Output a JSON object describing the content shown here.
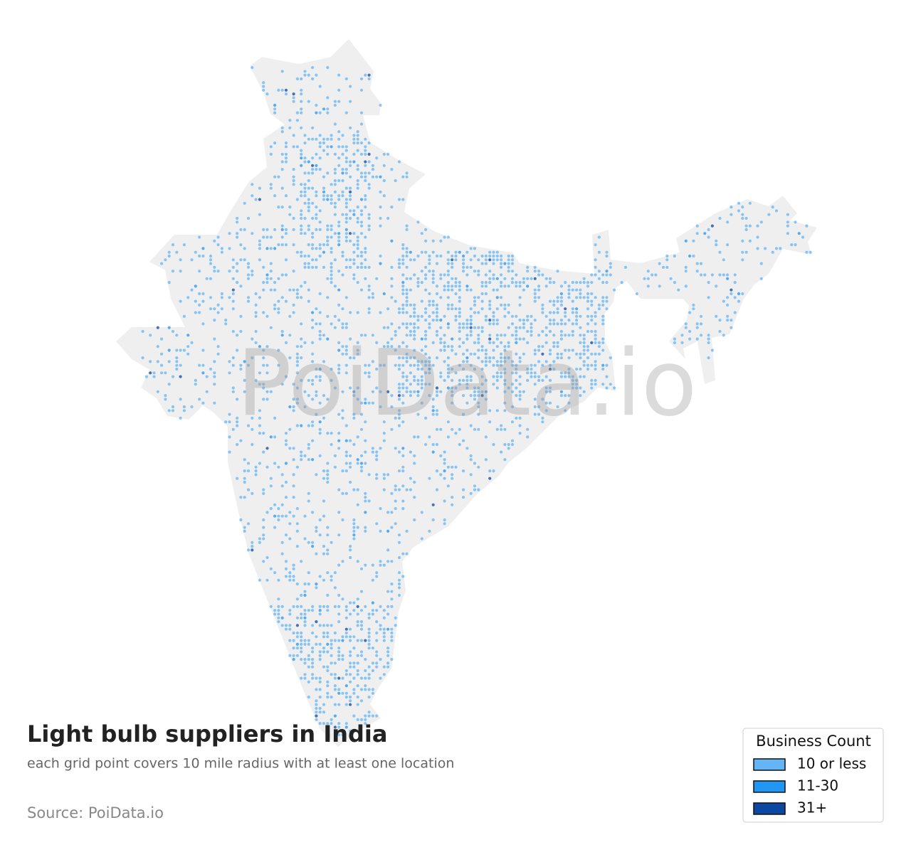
{
  "title": "Light bulb suppliers in India",
  "subtitle": "each grid point covers 10 mile radius with at least one location",
  "source": "Source: PoiData.io",
  "watermark": "PoiData.io",
  "legend": {
    "title": "Business Count",
    "items": [
      {
        "label": "10 or less",
        "color": "#64b5f6"
      },
      {
        "label": "11-30",
        "color": "#2196f3"
      },
      {
        "label": "31+",
        "color": "#0d47a1"
      }
    ]
  }
}
